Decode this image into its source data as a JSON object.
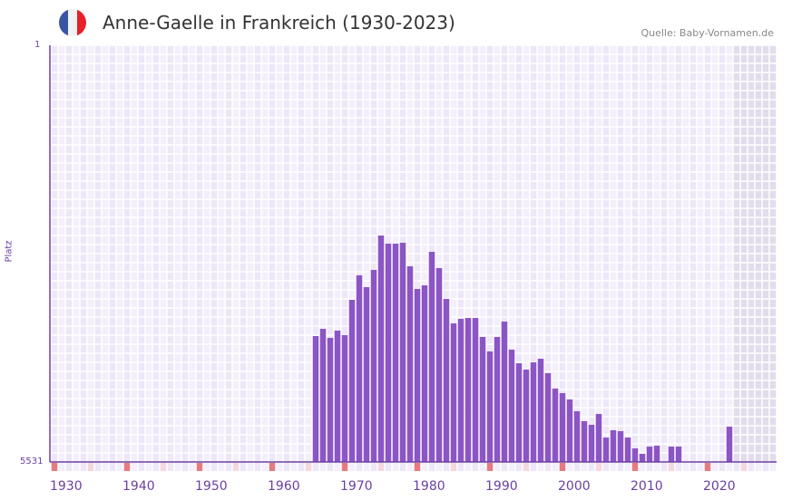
{
  "header": {
    "title": "Anne-Gaelle in Frankreich (1930-2023)",
    "source": "Quelle: Baby-Vornamen.de",
    "flag_colors": [
      "#3a55a4",
      "#f2f2f2",
      "#e8202a"
    ]
  },
  "colors": {
    "bar": "#8c55c6",
    "axis": "#6b3fa0",
    "marker": "#e77a80",
    "marker_light": "#f5d7de",
    "future": "#e2dcec"
  },
  "chart_data": {
    "type": "bar",
    "title": "Anne-Gaelle in Frankreich (1930-2023)",
    "xlabel": "",
    "ylabel": "Platz",
    "xlim": [
      1930,
      2029
    ],
    "ylim": [
      5531,
      1
    ],
    "y_ticks": [
      "1",
      "5531"
    ],
    "x_ticks": [
      "1930",
      "1940",
      "1950",
      "1960",
      "1970",
      "1980",
      "1990",
      "2000",
      "2010",
      "2020"
    ],
    "years": [
      1966,
      1967,
      1968,
      1969,
      1970,
      1971,
      1972,
      1973,
      1974,
      1975,
      1976,
      1977,
      1978,
      1979,
      1980,
      1981,
      1982,
      1983,
      1984,
      1985,
      1986,
      1987,
      1988,
      1989,
      1990,
      1991,
      1992,
      1993,
      1994,
      1995,
      1996,
      1997,
      1998,
      1999,
      2000,
      2001,
      2002,
      2003,
      2004,
      2005,
      2006,
      2007,
      2008,
      2009,
      2010,
      2011,
      2012,
      2013,
      2015,
      2016,
      2023
    ],
    "values": [
      3860,
      3764,
      3884,
      3788,
      3848,
      3379,
      3054,
      3211,
      2982,
      2526,
      2634,
      2634,
      2622,
      2934,
      3235,
      3187,
      2742,
      2958,
      3367,
      3692,
      3632,
      3620,
      3620,
      3872,
      4064,
      3872,
      3668,
      4040,
      4221,
      4305,
      4209,
      4161,
      4353,
      4557,
      4617,
      4701,
      4858,
      4990,
      5038,
      4894,
      5207,
      5110,
      5122,
      5207,
      5351,
      5423,
      5327,
      5315,
      5327,
      5327,
      5062
    ],
    "grid": true
  }
}
